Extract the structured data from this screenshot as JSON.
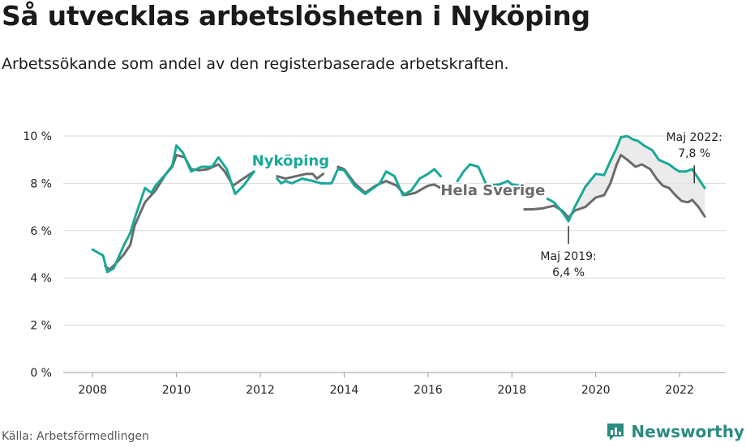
{
  "header": {
    "title": "Så utvecklas arbetslösheten i Nyköping",
    "subtitle": "Arbetssökande som andel av den registerbaserade arbetskraften."
  },
  "footer": {
    "source": "Källa: Arbetsförmedlingen",
    "brand": "Newsworthy"
  },
  "colors": {
    "nykoping": "#1aa898",
    "sverige": "#6b6b6b",
    "fill": "#e6e6e6",
    "grid": "#d9d9d9",
    "brand": "#2a8c80"
  },
  "icons": {
    "brand_logo": "chart-bubble-icon"
  },
  "chart_data": {
    "type": "line",
    "title": "",
    "xlabel": "",
    "ylabel": "",
    "xlim": [
      2007.3,
      2023.1
    ],
    "ylim": [
      0,
      10
    ],
    "x_ticks": [
      2008,
      2010,
      2012,
      2014,
      2016,
      2018,
      2020,
      2022
    ],
    "x_tick_labels": [
      "2008",
      "2010",
      "2012",
      "2014",
      "2016",
      "2018",
      "2020",
      "2022"
    ],
    "y_ticks": [
      0,
      2,
      4,
      6,
      8,
      10
    ],
    "y_tick_labels": [
      "0 %",
      "2 %",
      "4 %",
      "6 %",
      "8 %",
      "10 %"
    ],
    "grid": "horizontal",
    "series": [
      {
        "name": "Nyköping",
        "label_at": [
          2011.8,
          8.75
        ],
        "points": [
          [
            2008.0,
            5.2
          ],
          [
            2008.25,
            4.95
          ],
          [
            2008.35,
            4.25
          ],
          [
            2008.5,
            4.4
          ],
          [
            2008.75,
            5.4
          ],
          [
            2008.9,
            5.9
          ],
          [
            2009.0,
            6.5
          ],
          [
            2009.25,
            7.8
          ],
          [
            2009.4,
            7.6
          ],
          [
            2009.5,
            7.9
          ],
          [
            2009.75,
            8.4
          ],
          [
            2009.9,
            8.75
          ],
          [
            2010.0,
            9.6
          ],
          [
            2010.15,
            9.3
          ],
          [
            2010.35,
            8.5
          ],
          [
            2010.6,
            8.7
          ],
          [
            2010.85,
            8.7
          ],
          [
            2011.0,
            9.1
          ],
          [
            2011.2,
            8.6
          ],
          [
            2011.4,
            7.55
          ],
          [
            2011.6,
            7.9
          ],
          [
            2011.85,
            8.5
          ],
          null,
          [
            2012.4,
            8.2
          ],
          [
            2012.5,
            8.0
          ],
          [
            2012.6,
            8.1
          ],
          [
            2012.75,
            8.0
          ],
          [
            2013.0,
            8.2
          ],
          [
            2013.25,
            8.1
          ],
          [
            2013.45,
            8.0
          ],
          [
            2013.7,
            8.0
          ],
          [
            2013.85,
            8.6
          ],
          [
            2014.0,
            8.55
          ],
          [
            2014.25,
            7.9
          ],
          [
            2014.5,
            7.55
          ],
          [
            2014.7,
            7.8
          ],
          [
            2014.85,
            8.0
          ],
          [
            2015.0,
            8.5
          ],
          [
            2015.2,
            8.3
          ],
          [
            2015.4,
            7.5
          ],
          [
            2015.6,
            7.7
          ],
          [
            2015.8,
            8.2
          ],
          [
            2016.0,
            8.4
          ],
          [
            2016.15,
            8.6
          ],
          [
            2016.3,
            8.3
          ],
          null,
          [
            2016.7,
            8.1
          ],
          [
            2016.85,
            8.5
          ],
          [
            2017.0,
            8.8
          ],
          [
            2017.2,
            8.7
          ],
          [
            2017.4,
            7.9
          ],
          [
            2017.7,
            7.95
          ],
          [
            2017.9,
            8.1
          ],
          [
            2018.0,
            7.95
          ],
          [
            2018.2,
            7.9
          ],
          null,
          [
            2018.85,
            7.35
          ],
          [
            2019.0,
            7.2
          ],
          [
            2019.2,
            6.8
          ],
          [
            2019.35,
            6.4
          ],
          [
            2019.5,
            7.0
          ],
          [
            2019.75,
            7.85
          ],
          [
            2020.0,
            8.4
          ],
          [
            2020.2,
            8.35
          ],
          [
            2020.35,
            8.95
          ],
          [
            2020.5,
            9.5
          ],
          [
            2020.6,
            9.95
          ],
          [
            2020.75,
            10.0
          ],
          [
            2020.9,
            9.85
          ],
          [
            2021.0,
            9.8
          ],
          [
            2021.15,
            9.6
          ],
          [
            2021.35,
            9.4
          ],
          [
            2021.5,
            9.0
          ],
          [
            2021.75,
            8.8
          ],
          [
            2021.9,
            8.6
          ],
          [
            2022.0,
            8.5
          ],
          [
            2022.15,
            8.5
          ],
          [
            2022.3,
            8.6
          ],
          [
            2022.45,
            8.2
          ],
          [
            2022.6,
            7.8
          ]
        ]
      },
      {
        "name": "Hela Sverige",
        "label_at": [
          2016.3,
          7.5
        ],
        "points": [
          [
            2008.3,
            4.5
          ],
          [
            2008.4,
            4.35
          ],
          [
            2008.55,
            4.6
          ],
          [
            2008.75,
            5.0
          ],
          [
            2008.9,
            5.4
          ],
          [
            2009.0,
            6.2
          ],
          [
            2009.25,
            7.2
          ],
          [
            2009.5,
            7.7
          ],
          [
            2009.75,
            8.4
          ],
          [
            2009.9,
            8.7
          ],
          [
            2010.0,
            9.2
          ],
          [
            2010.2,
            9.1
          ],
          [
            2010.35,
            8.6
          ],
          [
            2010.55,
            8.55
          ],
          [
            2010.75,
            8.6
          ],
          [
            2011.0,
            8.8
          ],
          [
            2011.15,
            8.5
          ],
          [
            2011.35,
            7.9
          ],
          [
            2011.55,
            8.15
          ],
          [
            2011.85,
            8.5
          ],
          null,
          [
            2012.4,
            8.3
          ],
          [
            2012.6,
            8.2
          ],
          [
            2012.85,
            8.3
          ],
          [
            2013.1,
            8.4
          ],
          [
            2013.25,
            8.4
          ],
          [
            2013.35,
            8.2
          ],
          [
            2013.5,
            8.4
          ],
          null,
          [
            2013.85,
            8.7
          ],
          [
            2014.0,
            8.6
          ],
          [
            2014.25,
            8.0
          ],
          [
            2014.5,
            7.6
          ],
          [
            2014.75,
            7.9
          ],
          [
            2015.0,
            8.1
          ],
          [
            2015.25,
            7.9
          ],
          [
            2015.45,
            7.5
          ],
          [
            2015.7,
            7.6
          ],
          [
            2015.9,
            7.8
          ],
          [
            2016.0,
            7.9
          ],
          [
            2016.15,
            7.95
          ],
          [
            2016.3,
            7.8
          ],
          null,
          [
            2018.3,
            6.9
          ],
          [
            2018.5,
            6.9
          ],
          [
            2018.75,
            6.95
          ],
          [
            2019.0,
            7.05
          ],
          [
            2019.2,
            6.85
          ],
          [
            2019.35,
            6.55
          ],
          [
            2019.5,
            6.85
          ],
          [
            2019.75,
            7.0
          ],
          [
            2020.0,
            7.4
          ],
          [
            2020.2,
            7.5
          ],
          [
            2020.35,
            8.0
          ],
          [
            2020.5,
            8.8
          ],
          [
            2020.6,
            9.2
          ],
          [
            2020.75,
            9.0
          ],
          [
            2020.95,
            8.7
          ],
          [
            2021.1,
            8.8
          ],
          [
            2021.3,
            8.6
          ],
          [
            2021.45,
            8.2
          ],
          [
            2021.6,
            7.9
          ],
          [
            2021.75,
            7.8
          ],
          [
            2021.9,
            7.5
          ],
          [
            2022.05,
            7.25
          ],
          [
            2022.2,
            7.2
          ],
          [
            2022.3,
            7.3
          ],
          [
            2022.45,
            7.0
          ],
          [
            2022.6,
            6.6
          ]
        ]
      }
    ],
    "annotations": [
      {
        "id": "maj2022",
        "lines": [
          "Maj 2022:",
          "7,8 %"
        ],
        "x": 2022.35,
        "y": 7.8,
        "position": "above"
      },
      {
        "id": "maj2019",
        "lines": [
          "Maj 2019:",
          "6,4 %"
        ],
        "x": 2019.35,
        "y": 6.4,
        "position": "below"
      }
    ]
  }
}
